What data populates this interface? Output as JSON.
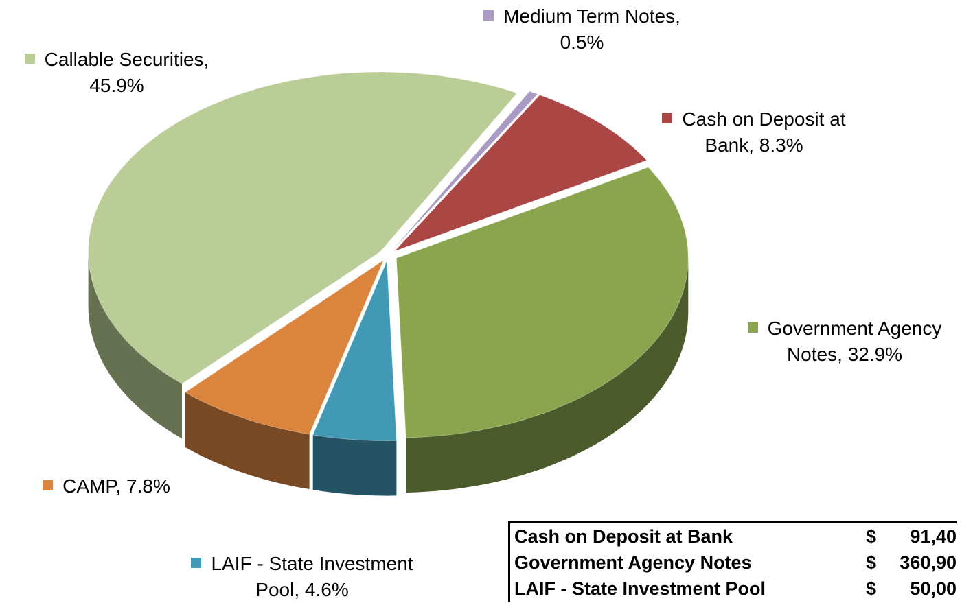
{
  "chart_data": {
    "type": "pie3d",
    "categories": [
      "Medium Term Notes,",
      "Cash on Deposit at Bank,",
      "Government Agency Notes,",
      "LAIF - State Investment Pool,",
      "CAMP,",
      "Callable Securities,"
    ],
    "values": [
      0.5,
      8.3,
      32.9,
      4.6,
      7.8,
      45.9
    ],
    "value_labels": [
      "0.5%",
      "8.3%",
      "32.9%",
      "4.6%",
      "7.8%",
      "45.9%"
    ],
    "colors": [
      "#a99bc4",
      "#aa4643",
      "#8ba54f",
      "#4299b5",
      "#db843d",
      "#bacd96"
    ]
  },
  "table": {
    "rows": [
      [
        "Cash on Deposit at Bank",
        "$",
        "91,40"
      ],
      [
        "Government Agency Notes",
        "$",
        "360,90"
      ],
      [
        "LAIF - State Investment Pool",
        "$",
        "50,00"
      ]
    ]
  }
}
